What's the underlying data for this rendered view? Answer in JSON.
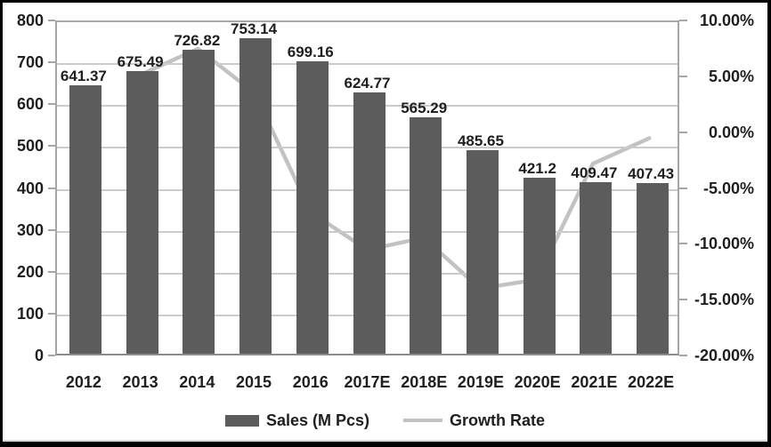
{
  "chart_data": {
    "type": "bar",
    "subtype": "bar-line-combo",
    "title": "",
    "categories": [
      "2012",
      "2013",
      "2014",
      "2015",
      "2016",
      "2017E",
      "2018E",
      "2019E",
      "2020E",
      "2021E",
      "2022E"
    ],
    "series": [
      {
        "name": "Sales (M Pcs)",
        "type": "bar",
        "axis": "left",
        "color": "#5c5c5c",
        "values": [
          641.37,
          675.49,
          726.82,
          753.14,
          699.16,
          624.77,
          565.29,
          485.65,
          421.2,
          409.47,
          407.43
        ],
        "labels": [
          "641.37",
          "675.49",
          "726.82",
          "753.14",
          "699.16",
          "624.77",
          "565.29",
          "485.65",
          "421.2",
          "409.47",
          "407.43"
        ]
      },
      {
        "name": "Growth Rate",
        "type": "line",
        "axis": "right",
        "color": "#c2c2c2",
        "values": [
          null,
          5.3,
          7.6,
          3.6,
          -7.2,
          -10.6,
          -9.5,
          -14.1,
          -13.3,
          -2.8,
          -0.5
        ]
      }
    ],
    "left_axis": {
      "min": 0,
      "max": 800,
      "step": 100,
      "labels": [
        "800",
        "700",
        "600",
        "500",
        "400",
        "300",
        "200",
        "100",
        "0"
      ]
    },
    "right_axis": {
      "min": -20,
      "max": 10,
      "step": 5,
      "labels": [
        "10.00%",
        "5.00%",
        "0.00%",
        "-5.00%",
        "-10.00%",
        "-15.00%",
        "-20.00%"
      ]
    },
    "legend": {
      "position": "bottom",
      "entries": [
        "Sales (M Pcs)",
        "Growth Rate"
      ]
    },
    "grid": "horizontal",
    "colors": {
      "bar": "#5c5c5c",
      "line": "#c2c2c2",
      "grid": "#cbcbcb",
      "axis_border": "#a6a6a6",
      "text": "#1f1f1f",
      "frame_border": "#000000"
    }
  }
}
